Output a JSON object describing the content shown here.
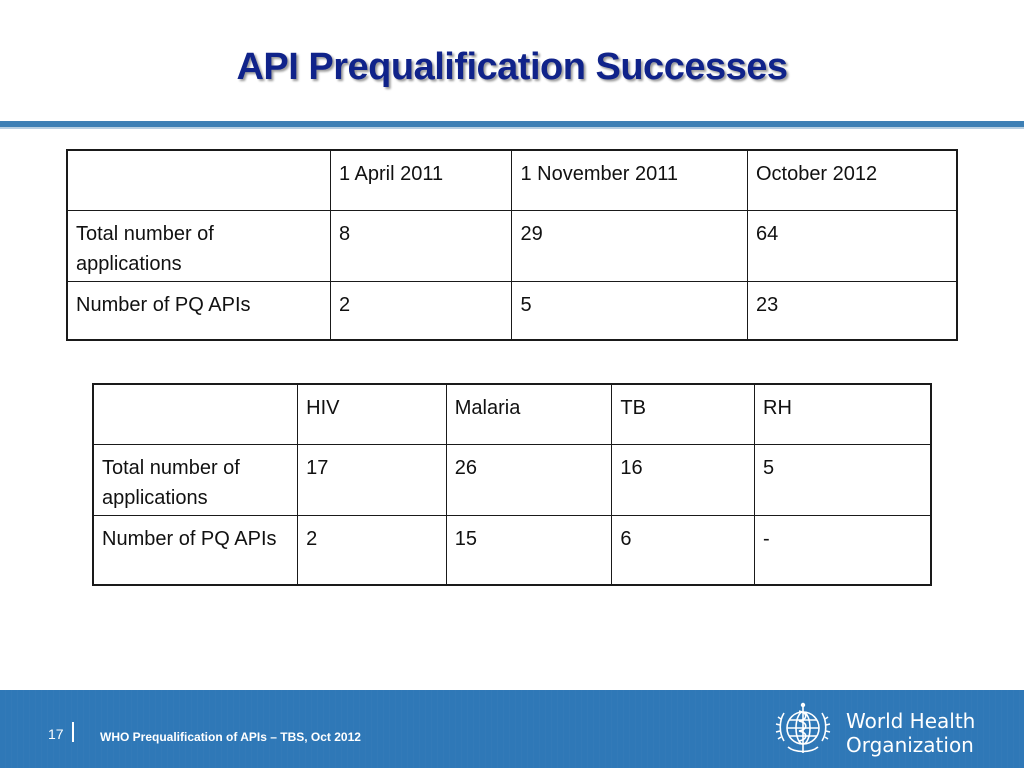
{
  "slide": {
    "title": "API Prequalification Successes"
  },
  "table1": {
    "header": [
      "",
      "1 April 2011",
      "1 November 2011",
      "October 2012"
    ],
    "rows": [
      [
        "Total number of applications",
        "8",
        "29",
        "64"
      ],
      [
        "Number of PQ APIs",
        "2",
        "5",
        "23"
      ]
    ]
  },
  "table2": {
    "header": [
      "",
      "HIV",
      "Malaria",
      "TB",
      "RH"
    ],
    "rows": [
      [
        "Total number of applications",
        "17",
        "26",
        "16",
        "5"
      ],
      [
        "Number of PQ APIs",
        "2",
        "15",
        "6",
        "-"
      ]
    ]
  },
  "footer": {
    "page_number": "17",
    "text": "WHO Prequalification of  APIs – TBS, Oct 2012",
    "org_line1": "World Health",
    "org_line2": "Organization"
  },
  "colors": {
    "title": "#10238a",
    "rule": "#3d7fb5",
    "footer_bg": "#2f78b7"
  },
  "icons": [
    "who-emblem-icon"
  ]
}
